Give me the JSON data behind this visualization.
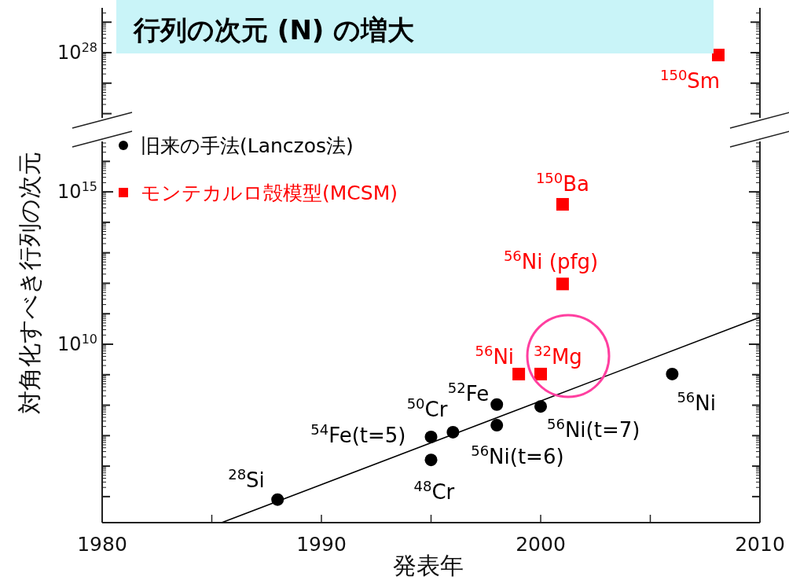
{
  "chart_data": {
    "type": "scatter",
    "title": "行列の次元 (N) の増大",
    "xlabel": "発表年",
    "ylabel": "対角化すべき行列の次元",
    "xlim": [
      1980,
      2010
    ],
    "xticks": [
      1980,
      {
        "value": 1985,
        "label": null
      },
      1990,
      {
        "value": 1995,
        "label": null
      },
      2000,
      {
        "value": 2005,
        "label": null
      },
      2010
    ],
    "ylim": [
      14000.0,
      4.5e+16
    ],
    "yticks": [
      {
        "value": 100000.0,
        "label": null
      },
      {
        "value": 1000000.0,
        "label": null
      },
      {
        "value": 10000000.0,
        "label": null
      },
      {
        "value": 100000000.0,
        "label": null
      },
      {
        "value": 1000000000.0,
        "label": null
      },
      {
        "value": 10000000000.0,
        "label": "10$^{10}$"
      },
      {
        "value": 100000000000.0,
        "label": null
      },
      {
        "value": 1000000000000.0,
        "label": null
      },
      {
        "value": 10000000000000.0,
        "label": null
      },
      {
        "value": 100000000000000.0,
        "label": null
      },
      {
        "value": 1000000000000000.0,
        "label": "10$^{15}$"
      },
      {
        "value": 1e+16,
        "label": null
      }
    ],
    "log": "y",
    "legend": "top left",
    "series": [
      {
        "name": "旧来の手法(Lanczos法)",
        "color": "#000000",
        "marker": "circle",
        "x": [
          1988,
          1995,
          1995,
          1996,
          1998,
          1998,
          2000,
          2006
        ],
        "values": [
          80000.0,
          1600000.0,
          9100000.0,
          13000000.0,
          22000000.0,
          105000000.0,
          91000000.0,
          1050000000.0
        ]
      },
      {
        "name": "モンテカルロ殻模型(MCSM)",
        "color": "#ff0000",
        "marker": "square",
        "x": [
          1999,
          2000,
          2001,
          2001
        ],
        "values": [
          1050000000.0,
          1050000000.0,
          950000000000.0,
          390000000000000.0
        ]
      },
      {
        "type": "line",
        "color": "#000000",
        "marker": "none",
        "x": [
          1985.45,
          2010
        ],
        "values": [
          14000.0,
          76000000000.0
        ]
      }
    ],
    "annotations": [
      {
        "text": "$^{28}$Si",
        "x": 1988,
        "y": 80000.0
      },
      {
        "text": "$^{48}$Cr",
        "x": 1995,
        "y": 1600000.0
      },
      {
        "text": "$^{54}$Fe(t=5)",
        "x": 1995,
        "y": 9100000.0
      },
      {
        "text": "$^{50}$Cr",
        "x": 1996,
        "y": 13000000.0
      },
      {
        "text": "$^{56}$Ni(t=6)",
        "x": 1998,
        "y": 22000000.0
      },
      {
        "text": "$^{52}$Fe",
        "x": 1998,
        "y": 105000000.0
      },
      {
        "text": "$^{56}$Ni(t=7)",
        "x": 2000,
        "y": 91000000.0
      },
      {
        "text": "$^{56}$Ni",
        "x": 2006,
        "y": 1050000000.0
      },
      {
        "text": "$^{56}$Ni",
        "x": 1999,
        "y": 1050000000.0
      },
      {
        "text": "$^{32}$Mg",
        "x": 2000,
        "y": 1050000000.0
      },
      {
        "text": "$^{56}$Ni (pfg)",
        "x": 2001,
        "y": 950000000000.0
      },
      {
        "text": "$^{150}$Ba",
        "x": 2001,
        "y": 390000000000000.0
      },
      "10$^{28}$",
      "$^{150}$Sm"
    ]
  }
}
